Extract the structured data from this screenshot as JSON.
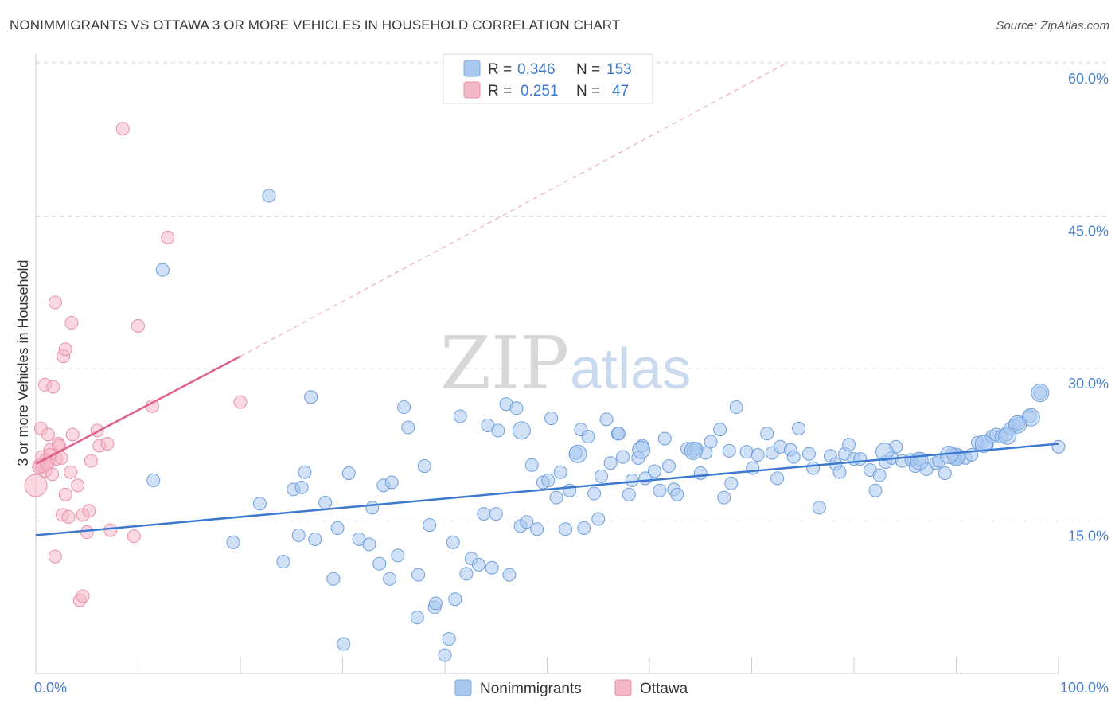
{
  "header": {
    "title": "NONIMMIGRANTS VS OTTAWA 3 OR MORE VEHICLES IN HOUSEHOLD CORRELATION CHART",
    "source": "Source: ZipAtlas.com"
  },
  "watermark": {
    "zip": "ZIP",
    "atlas": "atlas"
  },
  "legend_top": {
    "rows": [
      {
        "r_label": "R =",
        "r_value": "0.346",
        "n_label": "N =",
        "n_value": "153",
        "color": "#a9c8f0"
      },
      {
        "r_label": "R =",
        "r_value": "0.251",
        "n_label": "N =",
        "n_value": "47",
        "color": "#f5b8c8"
      }
    ]
  },
  "legend_bottom": {
    "items": [
      {
        "label": "Nonimmigrants",
        "color": "#a9c8f0"
      },
      {
        "label": "Ottawa",
        "color": "#f5b8c8"
      }
    ]
  },
  "chart_data": {
    "type": "scatter",
    "title": "NONIMMIGRANTS VS OTTAWA 3 OR MORE VEHICLES IN HOUSEHOLD CORRELATION CHART",
    "xlabel": "",
    "ylabel": "3 or more Vehicles in Household",
    "xlim": [
      0,
      100
    ],
    "ylim": [
      0,
      60
    ],
    "x_tick_labels": [
      "0.0%",
      "100.0%"
    ],
    "y_ticks": [
      15,
      30,
      45,
      60
    ],
    "y_tick_labels": [
      "15.0%",
      "30.0%",
      "45.0%",
      "60.0%"
    ],
    "grid": true,
    "legend": "top-center",
    "colors": {
      "blue": "#3b78cf",
      "blue_fill": "#a9c8f0",
      "pink": "#e0608a",
      "pink_fill": "#f5b8c8"
    },
    "series": [
      {
        "name": "Nonimmigrants",
        "color": "#a9c8f0",
        "trend": {
          "x": [
            0,
            100
          ],
          "y": [
            13.6,
            22.6
          ]
        },
        "points": [
          [
            11.5,
            19.0
          ],
          [
            12.4,
            39.7
          ],
          [
            22.8,
            47.0
          ],
          [
            19.3,
            12.9
          ],
          [
            21.9,
            16.7
          ],
          [
            24.2,
            11.0
          ],
          [
            25.2,
            18.1
          ],
          [
            25.7,
            13.6
          ],
          [
            26.0,
            18.3
          ],
          [
            26.3,
            19.8
          ],
          [
            26.9,
            27.2
          ],
          [
            27.3,
            13.2
          ],
          [
            28.3,
            16.8
          ],
          [
            29.1,
            9.3
          ],
          [
            29.5,
            14.3
          ],
          [
            30.1,
            2.9
          ],
          [
            30.6,
            19.7
          ],
          [
            31.6,
            13.2
          ],
          [
            32.6,
            12.7
          ],
          [
            32.9,
            16.3
          ],
          [
            33.6,
            10.8
          ],
          [
            34.0,
            18.5
          ],
          [
            34.6,
            9.3
          ],
          [
            34.8,
            18.8
          ],
          [
            35.4,
            11.6
          ],
          [
            36.0,
            26.2
          ],
          [
            36.4,
            24.2
          ],
          [
            37.4,
            9.7
          ],
          [
            37.3,
            5.5
          ],
          [
            38.0,
            20.4
          ],
          [
            38.5,
            14.6
          ],
          [
            39.0,
            6.5
          ],
          [
            39.1,
            6.9
          ],
          [
            40.0,
            1.8
          ],
          [
            40.4,
            3.4
          ],
          [
            40.8,
            12.9
          ],
          [
            41.0,
            7.3
          ],
          [
            41.5,
            25.3
          ],
          [
            42.1,
            9.8
          ],
          [
            42.6,
            11.3
          ],
          [
            43.3,
            10.7
          ],
          [
            43.8,
            15.7
          ],
          [
            44.2,
            24.4
          ],
          [
            44.6,
            10.4
          ],
          [
            45.0,
            15.7
          ],
          [
            45.2,
            23.9
          ],
          [
            46.0,
            26.5
          ],
          [
            46.3,
            9.7
          ],
          [
            47.0,
            26.1
          ],
          [
            47.4,
            14.5
          ],
          [
            48.0,
            14.9
          ],
          [
            48.5,
            20.5
          ],
          [
            49.0,
            14.2
          ],
          [
            49.6,
            18.8
          ],
          [
            50.1,
            19.0
          ],
          [
            50.4,
            25.1
          ],
          [
            50.9,
            17.3
          ],
          [
            51.3,
            19.8
          ],
          [
            51.8,
            14.2
          ],
          [
            52.2,
            18.0
          ],
          [
            52.8,
            21.7
          ],
          [
            53.3,
            24.0
          ],
          [
            53.6,
            14.3
          ],
          [
            54.0,
            23.3
          ],
          [
            54.6,
            17.7
          ],
          [
            55.0,
            15.2
          ],
          [
            55.3,
            19.4
          ],
          [
            55.8,
            25.0
          ],
          [
            56.2,
            20.7
          ],
          [
            56.9,
            23.6
          ],
          [
            57.0,
            23.6
          ],
          [
            57.4,
            21.3
          ],
          [
            58.0,
            17.6
          ],
          [
            58.3,
            19.0
          ],
          [
            58.9,
            21.2
          ],
          [
            59.3,
            22.4
          ],
          [
            59.6,
            19.2
          ],
          [
            60.5,
            19.9
          ],
          [
            61.0,
            18.0
          ],
          [
            61.5,
            23.1
          ],
          [
            61.9,
            20.4
          ],
          [
            62.4,
            18.1
          ],
          [
            62.7,
            17.6
          ],
          [
            63.7,
            22.1
          ],
          [
            64.3,
            21.9
          ],
          [
            64.6,
            22.1
          ],
          [
            65.0,
            19.7
          ],
          [
            65.5,
            21.7
          ],
          [
            66.0,
            22.8
          ],
          [
            66.9,
            24.0
          ],
          [
            67.3,
            17.3
          ],
          [
            67.8,
            21.9
          ],
          [
            68.0,
            18.7
          ],
          [
            68.5,
            26.2
          ],
          [
            69.5,
            21.8
          ],
          [
            70.1,
            20.2
          ],
          [
            70.6,
            21.5
          ],
          [
            71.5,
            23.6
          ],
          [
            72.0,
            21.7
          ],
          [
            72.5,
            19.2
          ],
          [
            72.8,
            22.3
          ],
          [
            73.8,
            22.0
          ],
          [
            74.1,
            21.3
          ],
          [
            74.6,
            24.1
          ],
          [
            75.6,
            21.6
          ],
          [
            76.0,
            20.2
          ],
          [
            76.6,
            16.3
          ],
          [
            77.7,
            21.4
          ],
          [
            78.2,
            20.6
          ],
          [
            78.6,
            19.8
          ],
          [
            79.1,
            21.6
          ],
          [
            79.5,
            22.5
          ],
          [
            80.0,
            21.1
          ],
          [
            80.6,
            21.1
          ],
          [
            81.6,
            20.0
          ],
          [
            82.1,
            18.0
          ],
          [
            82.5,
            19.5
          ],
          [
            83.1,
            20.8
          ],
          [
            83.7,
            21.2
          ],
          [
            84.1,
            22.3
          ],
          [
            84.7,
            20.9
          ],
          [
            85.6,
            21.0
          ],
          [
            86.0,
            20.4
          ],
          [
            86.4,
            21.1
          ],
          [
            87.1,
            20.1
          ],
          [
            88.0,
            20.7
          ],
          [
            88.3,
            20.9
          ],
          [
            88.9,
            19.7
          ],
          [
            89.6,
            21.6
          ],
          [
            90.0,
            21.2
          ],
          [
            90.3,
            21.4
          ],
          [
            90.9,
            21.2
          ],
          [
            91.5,
            21.5
          ],
          [
            92.1,
            22.7
          ],
          [
            92.6,
            22.8
          ],
          [
            93.0,
            22.5
          ],
          [
            93.5,
            23.3
          ],
          [
            93.9,
            23.5
          ],
          [
            94.4,
            23.3
          ],
          [
            94.9,
            23.5
          ],
          [
            95.3,
            24.1
          ],
          [
            95.7,
            24.4
          ],
          [
            96.1,
            24.6
          ],
          [
            97.2,
            25.3
          ],
          [
            98.2,
            27.6
          ],
          [
            100.0,
            22.3
          ]
        ],
        "big_points": [
          [
            64.3,
            21.9
          ],
          [
            83.0,
            21.8
          ],
          [
            90.0,
            21.3
          ],
          [
            98.2,
            27.6
          ],
          [
            97.3,
            25.2
          ],
          [
            96.0,
            24.5
          ],
          [
            47.5,
            23.9
          ],
          [
            53.0,
            21.6
          ],
          [
            59.2,
            22.0
          ],
          [
            95.0,
            23.4
          ],
          [
            92.7,
            22.6
          ],
          [
            89.3,
            21.5
          ],
          [
            86.4,
            20.9
          ]
        ]
      },
      {
        "name": "Ottawa",
        "color": "#f5b8c8",
        "trend": {
          "x": [
            0,
            20
          ],
          "y": [
            20.6,
            31.2
          ]
        },
        "trend_extension": {
          "x": [
            20,
            73.3
          ],
          "y": [
            31.2,
            60.0
          ]
        },
        "points": [
          [
            0.0,
            18.5
          ],
          [
            0.4,
            20.5
          ],
          [
            0.5,
            24.1
          ],
          [
            0.6,
            21.3
          ],
          [
            0.7,
            20.3
          ],
          [
            0.9,
            19.9
          ],
          [
            0.9,
            28.4
          ],
          [
            1.0,
            21.0
          ],
          [
            1.2,
            23.5
          ],
          [
            1.2,
            20.8
          ],
          [
            1.4,
            22.0
          ],
          [
            1.4,
            21.5
          ],
          [
            1.6,
            19.6
          ],
          [
            1.7,
            28.2
          ],
          [
            1.9,
            36.5
          ],
          [
            1.9,
            11.5
          ],
          [
            2.0,
            21.1
          ],
          [
            2.2,
            22.6
          ],
          [
            2.3,
            22.4
          ],
          [
            2.5,
            21.2
          ],
          [
            2.6,
            15.6
          ],
          [
            2.7,
            31.2
          ],
          [
            2.9,
            17.6
          ],
          [
            2.9,
            31.9
          ],
          [
            3.2,
            15.4
          ],
          [
            3.4,
            19.8
          ],
          [
            3.5,
            34.5
          ],
          [
            3.6,
            23.5
          ],
          [
            4.1,
            18.5
          ],
          [
            4.3,
            7.2
          ],
          [
            4.6,
            15.6
          ],
          [
            4.6,
            7.6
          ],
          [
            5.0,
            13.9
          ],
          [
            5.2,
            16.0
          ],
          [
            5.4,
            20.9
          ],
          [
            6.0,
            23.9
          ],
          [
            6.2,
            22.4
          ],
          [
            7.0,
            22.6
          ],
          [
            7.3,
            14.1
          ],
          [
            8.5,
            53.6
          ],
          [
            9.6,
            13.5
          ],
          [
            10.0,
            34.2
          ],
          [
            11.4,
            26.3
          ],
          [
            12.9,
            42.9
          ],
          [
            20.0,
            26.7
          ],
          [
            0.3,
            20.3
          ],
          [
            1.1,
            20.6
          ]
        ]
      }
    ]
  }
}
